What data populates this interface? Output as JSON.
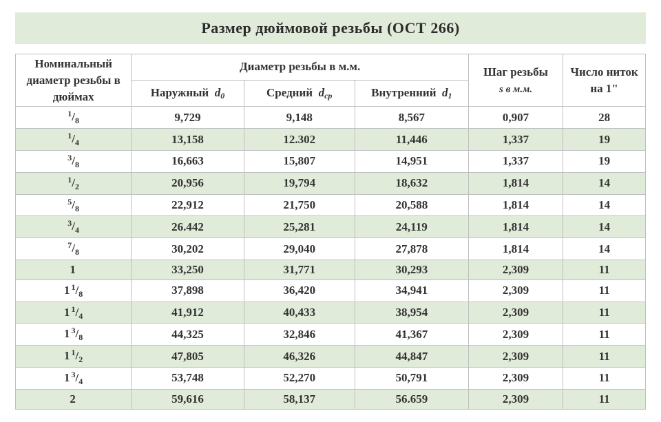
{
  "title": "Размер дюймовой резьбы   (ОСТ 266)",
  "header": {
    "nominal": "Номинальный диаметр резьбы в дюймах",
    "diam_group": "Диаметр резьбы в м.м.",
    "outer": "Наружный",
    "outer_sym": "d",
    "outer_sub": "0",
    "mid": "Средний",
    "mid_sym": "d",
    "mid_sub": "ср",
    "inner": "Внутренний",
    "inner_sym": "d",
    "inner_sub": "1",
    "step1": "Шаг резьбы",
    "step2": "s в  м.м.",
    "threads": "Число ниток на 1\""
  },
  "rows": [
    {
      "whole": "",
      "num": "1",
      "den": "8",
      "d0": "9,729",
      "dcp": "9,148",
      "d1": "8,567",
      "s": "0,907",
      "n": "28"
    },
    {
      "whole": "",
      "num": "1",
      "den": "4",
      "d0": "13,158",
      "dcp": "12.302",
      "d1": "11,446",
      "s": "1,337",
      "n": "19"
    },
    {
      "whole": "",
      "num": "3",
      "den": "8",
      "d0": "16,663",
      "dcp": "15,807",
      "d1": "14,951",
      "s": "1,337",
      "n": "19"
    },
    {
      "whole": "",
      "num": "1",
      "den": "2",
      "d0": "20,956",
      "dcp": "19,794",
      "d1": "18,632",
      "s": "1,814",
      "n": "14"
    },
    {
      "whole": "",
      "num": "5",
      "den": "8",
      "d0": "22,912",
      "dcp": "21,750",
      "d1": "20,588",
      "s": "1,814",
      "n": "14"
    },
    {
      "whole": "",
      "num": "3",
      "den": "4",
      "d0": "26.442",
      "dcp": "25,281",
      "d1": "24,119",
      "s": "1,814",
      "n": "14"
    },
    {
      "whole": "",
      "num": "7",
      "den": "8",
      "d0": "30,202",
      "dcp": "29,040",
      "d1": "27,878",
      "s": "1,814",
      "n": "14"
    },
    {
      "whole": "1",
      "num": "",
      "den": "",
      "d0": "33,250",
      "dcp": "31,771",
      "d1": "30,293",
      "s": "2,309",
      "n": "11"
    },
    {
      "whole": "1",
      "num": "1",
      "den": "8",
      "d0": "37,898",
      "dcp": "36,420",
      "d1": "34,941",
      "s": "2,309",
      "n": "11"
    },
    {
      "whole": "1",
      "num": "1",
      "den": "4",
      "d0": "41,912",
      "dcp": "40,433",
      "d1": "38,954",
      "s": "2,309",
      "n": "11"
    },
    {
      "whole": "1",
      "num": "3",
      "den": "8",
      "d0": "44,325",
      "dcp": "32,846",
      "d1": "41,367",
      "s": "2,309",
      "n": "11"
    },
    {
      "whole": "1",
      "num": "1",
      "den": "2",
      "d0": "47,805",
      "dcp": "46,326",
      "d1": "44,847",
      "s": "2,309",
      "n": "11"
    },
    {
      "whole": "1",
      "num": "3",
      "den": "4",
      "d0": "53,748",
      "dcp": "52,270",
      "d1": "50,791",
      "s": "2,309",
      "n": "11"
    },
    {
      "whole": "2",
      "num": "",
      "den": "",
      "d0": "59,616",
      "dcp": "58,137",
      "d1": "56.659",
      "s": "2,309",
      "n": "11"
    }
  ],
  "style": {
    "alt_bg": "#e1ebda",
    "plain_bg": "#ffffff",
    "border": "#bfbfbf",
    "title_bg": "#e1ebda",
    "text": "#333333",
    "font_size_title": 22,
    "font_size_body": 17
  }
}
